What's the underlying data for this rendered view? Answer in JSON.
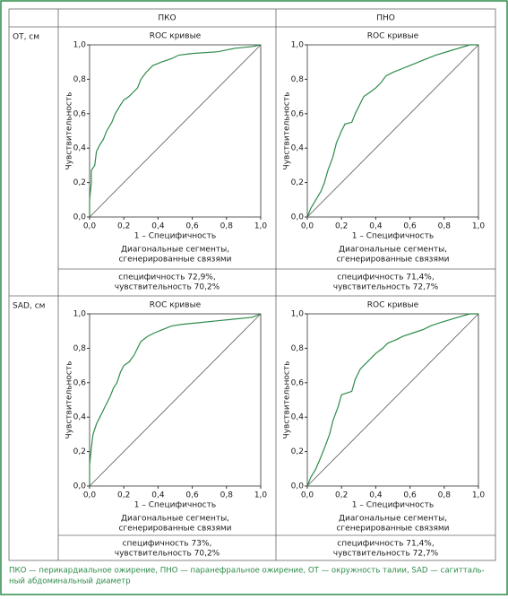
{
  "table": {
    "headers": [
      "ПКО",
      "ПНО"
    ],
    "rows": [
      {
        "label": "ОТ, см",
        "stats": [
          [
            "специфичность 72,9%,",
            "чувствительность 70,2%"
          ],
          [
            "специфичность 71,4%,",
            "чувствительность 72,7%"
          ]
        ]
      },
      {
        "label": "SAD, см",
        "stats": [
          [
            "специфичность 73%,",
            "чувствительность 70,2%"
          ],
          [
            "специфичность 71,4%,",
            "чувствительность 72,7%"
          ]
        ]
      }
    ]
  },
  "caption": [
    "ПКО — перикардиальное ожирение, ПНО — паранефральное ожирение, ОТ — окружность талии, SAD — сагитталь-",
    "ный абдоминальный диаметр"
  ],
  "chart_data": [
    {
      "type": "line",
      "title": "ROC кривые",
      "x_label": "1 – Специфичность",
      "y_label": "Чувствительность",
      "note": [
        "Диагональные сегменты,",
        "сгенерированные связями"
      ],
      "xlim": [
        0,
        1
      ],
      "ylim": [
        0,
        1
      ],
      "xticks": [
        {
          "value": 0,
          "label": "0,0"
        },
        {
          "value": 0.2,
          "label": "0,2"
        },
        {
          "value": 0.4,
          "label": "0,4"
        },
        {
          "value": 0.6,
          "label": "0,6"
        },
        {
          "value": 0.8,
          "label": "0,8"
        },
        {
          "value": 1,
          "label": "1,0"
        }
      ],
      "yticks": [
        {
          "value": 0,
          "label": "0,0"
        },
        {
          "value": 0.2,
          "label": "0,2"
        },
        {
          "value": 0.4,
          "label": "0,4"
        },
        {
          "value": 0.6,
          "label": "0,6"
        },
        {
          "value": 0.8,
          "label": "0,8"
        },
        {
          "value": 1,
          "label": "1,0"
        }
      ],
      "series": [
        {
          "color": "#2e8b4a",
          "x": [
            0,
            0,
            0.01,
            0.01,
            0.03,
            0.04,
            0.06,
            0.08,
            0.1,
            0.13,
            0.15,
            0.18,
            0.2,
            0.23,
            0.25,
            0.28,
            0.3,
            0.33,
            0.37,
            0.42,
            0.48,
            0.52,
            0.6,
            0.75,
            0.85,
            0.95,
            1
          ],
          "values": [
            0,
            0.1,
            0.2,
            0.27,
            0.3,
            0.38,
            0.42,
            0.45,
            0.5,
            0.55,
            0.6,
            0.65,
            0.68,
            0.7,
            0.72,
            0.75,
            0.8,
            0.84,
            0.88,
            0.9,
            0.92,
            0.94,
            0.95,
            0.96,
            0.98,
            0.99,
            1
          ]
        },
        {
          "color": "#555555",
          "x": [
            0,
            1
          ],
          "values": [
            0,
            1
          ]
        }
      ]
    },
    {
      "type": "line",
      "title": "ROC кривые",
      "x_label": "1 – Специфичность",
      "y_label": "Чувствительность",
      "note": [
        "Диагональные сегменты,",
        "сгенерированные связями"
      ],
      "xlim": [
        0,
        1
      ],
      "ylim": [
        0,
        1
      ],
      "xticks": [
        {
          "value": 0,
          "label": "0,0"
        },
        {
          "value": 0.2,
          "label": "0,2"
        },
        {
          "value": 0.4,
          "label": "0,4"
        },
        {
          "value": 0.6,
          "label": "0,6"
        },
        {
          "value": 0.8,
          "label": "0,8"
        },
        {
          "value": 1,
          "label": "1,0"
        }
      ],
      "yticks": [
        {
          "value": 0,
          "label": "0,0"
        },
        {
          "value": 0.2,
          "label": "0,2"
        },
        {
          "value": 0.4,
          "label": "0,4"
        },
        {
          "value": 0.6,
          "label": "0,6"
        },
        {
          "value": 0.8,
          "label": "0,8"
        },
        {
          "value": 1,
          "label": "1,0"
        }
      ],
      "series": [
        {
          "color": "#2e8b4a",
          "x": [
            0,
            0.02,
            0.05,
            0.08,
            0.1,
            0.12,
            0.15,
            0.17,
            0.2,
            0.22,
            0.26,
            0.28,
            0.31,
            0.33,
            0.36,
            0.4,
            0.43,
            0.46,
            0.5,
            0.55,
            0.6,
            0.65,
            0.7,
            0.75,
            0.85,
            0.95,
            1
          ],
          "values": [
            0,
            0.05,
            0.1,
            0.15,
            0.2,
            0.27,
            0.35,
            0.43,
            0.5,
            0.54,
            0.55,
            0.6,
            0.66,
            0.7,
            0.72,
            0.75,
            0.78,
            0.82,
            0.84,
            0.86,
            0.88,
            0.9,
            0.92,
            0.94,
            0.97,
            1,
            1
          ]
        },
        {
          "color": "#555555",
          "x": [
            0,
            1
          ],
          "values": [
            0,
            1
          ]
        }
      ]
    },
    {
      "type": "line",
      "title": "ROC кривые",
      "x_label": "1 – Специфичность",
      "y_label": "Чувствительность",
      "note": [
        "Диагональные сегменты,",
        "сгенерированные связями"
      ],
      "xlim": [
        0,
        1
      ],
      "ylim": [
        0,
        1
      ],
      "xticks": [
        {
          "value": 0,
          "label": "0,0"
        },
        {
          "value": 0.2,
          "label": "0,2"
        },
        {
          "value": 0.4,
          "label": "0,4"
        },
        {
          "value": 0.6,
          "label": "0,6"
        },
        {
          "value": 0.8,
          "label": "0,8"
        },
        {
          "value": 1,
          "label": "1,0"
        }
      ],
      "yticks": [
        {
          "value": 0,
          "label": "0,0"
        },
        {
          "value": 0.2,
          "label": "0,2"
        },
        {
          "value": 0.4,
          "label": "0,4"
        },
        {
          "value": 0.6,
          "label": "0,6"
        },
        {
          "value": 0.8,
          "label": "0,8"
        },
        {
          "value": 1,
          "label": "1,0"
        }
      ],
      "series": [
        {
          "color": "#2e8b4a",
          "x": [
            0,
            0,
            0.01,
            0.02,
            0.04,
            0.06,
            0.08,
            0.1,
            0.12,
            0.14,
            0.16,
            0.18,
            0.2,
            0.23,
            0.26,
            0.28,
            0.3,
            0.34,
            0.38,
            0.43,
            0.48,
            0.55,
            0.65,
            0.75,
            0.85,
            0.95,
            1
          ],
          "values": [
            0,
            0.12,
            0.22,
            0.3,
            0.36,
            0.4,
            0.44,
            0.48,
            0.52,
            0.57,
            0.6,
            0.66,
            0.7,
            0.72,
            0.76,
            0.8,
            0.84,
            0.87,
            0.89,
            0.91,
            0.93,
            0.94,
            0.95,
            0.96,
            0.97,
            0.98,
            1
          ]
        },
        {
          "color": "#555555",
          "x": [
            0,
            1
          ],
          "values": [
            0,
            1
          ]
        }
      ]
    },
    {
      "type": "line",
      "title": "ROC кривые",
      "x_label": "1 – Специфичность",
      "y_label": "Чувствительность",
      "note": [
        "Диагональные сегменты,",
        "сгенерированные связями"
      ],
      "xlim": [
        0,
        1
      ],
      "ylim": [
        0,
        1
      ],
      "xticks": [
        {
          "value": 0,
          "label": "0,0"
        },
        {
          "value": 0.2,
          "label": "0,2"
        },
        {
          "value": 0.4,
          "label": "0,4"
        },
        {
          "value": 0.6,
          "label": "0,6"
        },
        {
          "value": 0.8,
          "label": "0,8"
        },
        {
          "value": 1,
          "label": "1,0"
        }
      ],
      "yticks": [
        {
          "value": 0,
          "label": "0,0"
        },
        {
          "value": 0.2,
          "label": "0,2"
        },
        {
          "value": 0.4,
          "label": "0,4"
        },
        {
          "value": 0.6,
          "label": "0,6"
        },
        {
          "value": 0.8,
          "label": "0,8"
        },
        {
          "value": 1,
          "label": "1,0"
        }
      ],
      "series": [
        {
          "color": "#2e8b4a",
          "x": [
            0,
            0.02,
            0.05,
            0.08,
            0.1,
            0.13,
            0.15,
            0.18,
            0.2,
            0.23,
            0.26,
            0.28,
            0.31,
            0.34,
            0.37,
            0.4,
            0.44,
            0.47,
            0.52,
            0.56,
            0.62,
            0.68,
            0.72,
            0.78,
            0.88,
            0.95,
            1
          ],
          "values": [
            0,
            0.05,
            0.1,
            0.17,
            0.22,
            0.3,
            0.38,
            0.46,
            0.53,
            0.54,
            0.55,
            0.62,
            0.68,
            0.71,
            0.74,
            0.77,
            0.8,
            0.83,
            0.85,
            0.87,
            0.89,
            0.91,
            0.93,
            0.95,
            0.98,
            1,
            1
          ]
        },
        {
          "color": "#555555",
          "x": [
            0,
            1
          ],
          "values": [
            0,
            1
          ]
        }
      ]
    }
  ]
}
